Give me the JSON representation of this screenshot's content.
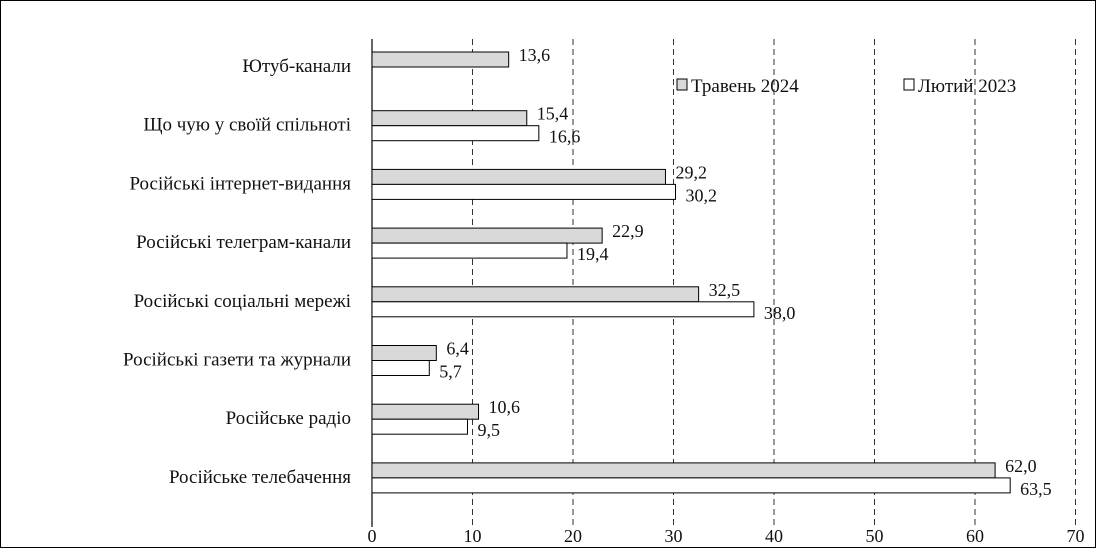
{
  "chart_data": {
    "type": "bar",
    "orientation": "horizontal",
    "categories": [
      "Ютуб-канали",
      "Що чую у своїй спільноті",
      "Російські інтернет-видання",
      "Російські телеграм-канали",
      "Російські соціальні мережі",
      "Російські газети та журнали",
      "Російське радіо",
      "Російське телебачення"
    ],
    "series": [
      {
        "name": "Травень 2024",
        "color": "#d9d9d9",
        "values": [
          13.6,
          15.4,
          29.2,
          22.9,
          32.5,
          6.4,
          10.6,
          62.0
        ],
        "labels": [
          "13,6",
          "15,4",
          "29,2",
          "22,9",
          "32,5",
          "6,4",
          "10,6",
          "62,0"
        ]
      },
      {
        "name": "Лютий 2023",
        "color": "#ffffff",
        "values": [
          null,
          16.6,
          30.2,
          19.4,
          38.0,
          5.7,
          9.5,
          63.5
        ],
        "labels": [
          "",
          "16,6",
          "30,2",
          "19,4",
          "38,0",
          "5,7",
          "9,5",
          "63,5"
        ]
      }
    ],
    "x_ticks": [
      "0",
      "10",
      "20",
      "30",
      "40",
      "50",
      "60",
      "70"
    ],
    "xlim": [
      0,
      70
    ],
    "grid": "vertical dashed",
    "legend_placement": "top-right"
  }
}
